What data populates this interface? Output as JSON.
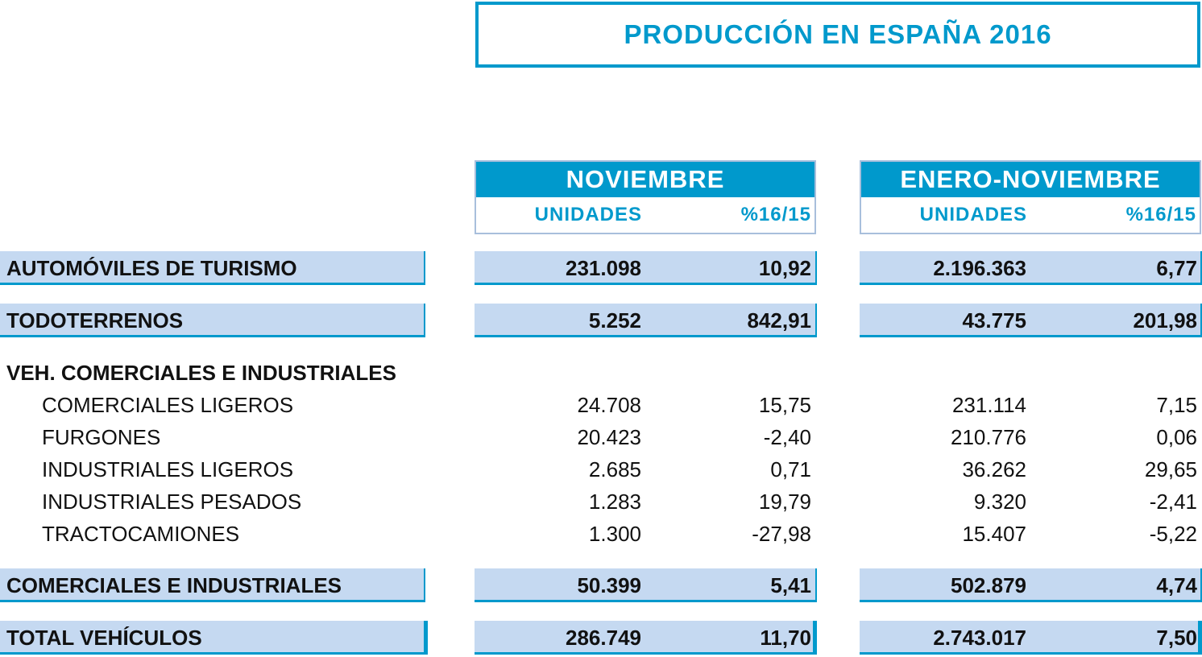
{
  "title": "PRODUCCIÓN  EN ESPAÑA 2016",
  "groups": [
    {
      "label": "NOVIEMBRE",
      "col1": "UNIDADES",
      "col2": "%16/15"
    },
    {
      "label": "ENERO-NOVIEMBRE",
      "col1": "UNIDADES",
      "col2": "%16/15"
    }
  ],
  "rows": [
    {
      "label": "AUTOMÓVILES DE TURISMO",
      "style": "bar",
      "values": [
        "231.098",
        "10,92",
        "2.196.363",
        "6,77"
      ]
    },
    {
      "label": "TODOTERRENOS",
      "style": "bar",
      "values": [
        "5.252",
        "842,91",
        "43.775",
        "201,98"
      ]
    },
    {
      "label": "VEH. COMERCIALES E INDUSTRIALES",
      "style": "heading",
      "values": []
    },
    {
      "label": "COMERCIALES LIGEROS",
      "style": "sub",
      "values": [
        "24.708",
        "15,75",
        "231.114",
        "7,15"
      ]
    },
    {
      "label": "FURGONES",
      "style": "sub",
      "values": [
        "20.423",
        "-2,40",
        "210.776",
        "0,06"
      ]
    },
    {
      "label": "INDUSTRIALES LIGEROS",
      "style": "sub",
      "values": [
        "2.685",
        "0,71",
        "36.262",
        "29,65"
      ]
    },
    {
      "label": "INDUSTRIALES PESADOS",
      "style": "sub",
      "values": [
        "1.283",
        "19,79",
        "9.320",
        "-2,41"
      ]
    },
    {
      "label": "TRACTOCAMIONES",
      "style": "sub",
      "values": [
        "1.300",
        "-27,98",
        "15.407",
        "-5,22"
      ]
    },
    {
      "label": "COMERCIALES E INDUSTRIALES",
      "style": "bar",
      "values": [
        "50.399",
        "5,41",
        "502.879",
        "4,74"
      ]
    },
    {
      "label": "TOTAL VEHÍCULOS",
      "style": "total",
      "values": [
        "286.749",
        "11,70",
        "2.743.017",
        "7,50"
      ]
    }
  ],
  "colors": {
    "accent": "#0099cc",
    "bar": "#c5d9f1"
  }
}
